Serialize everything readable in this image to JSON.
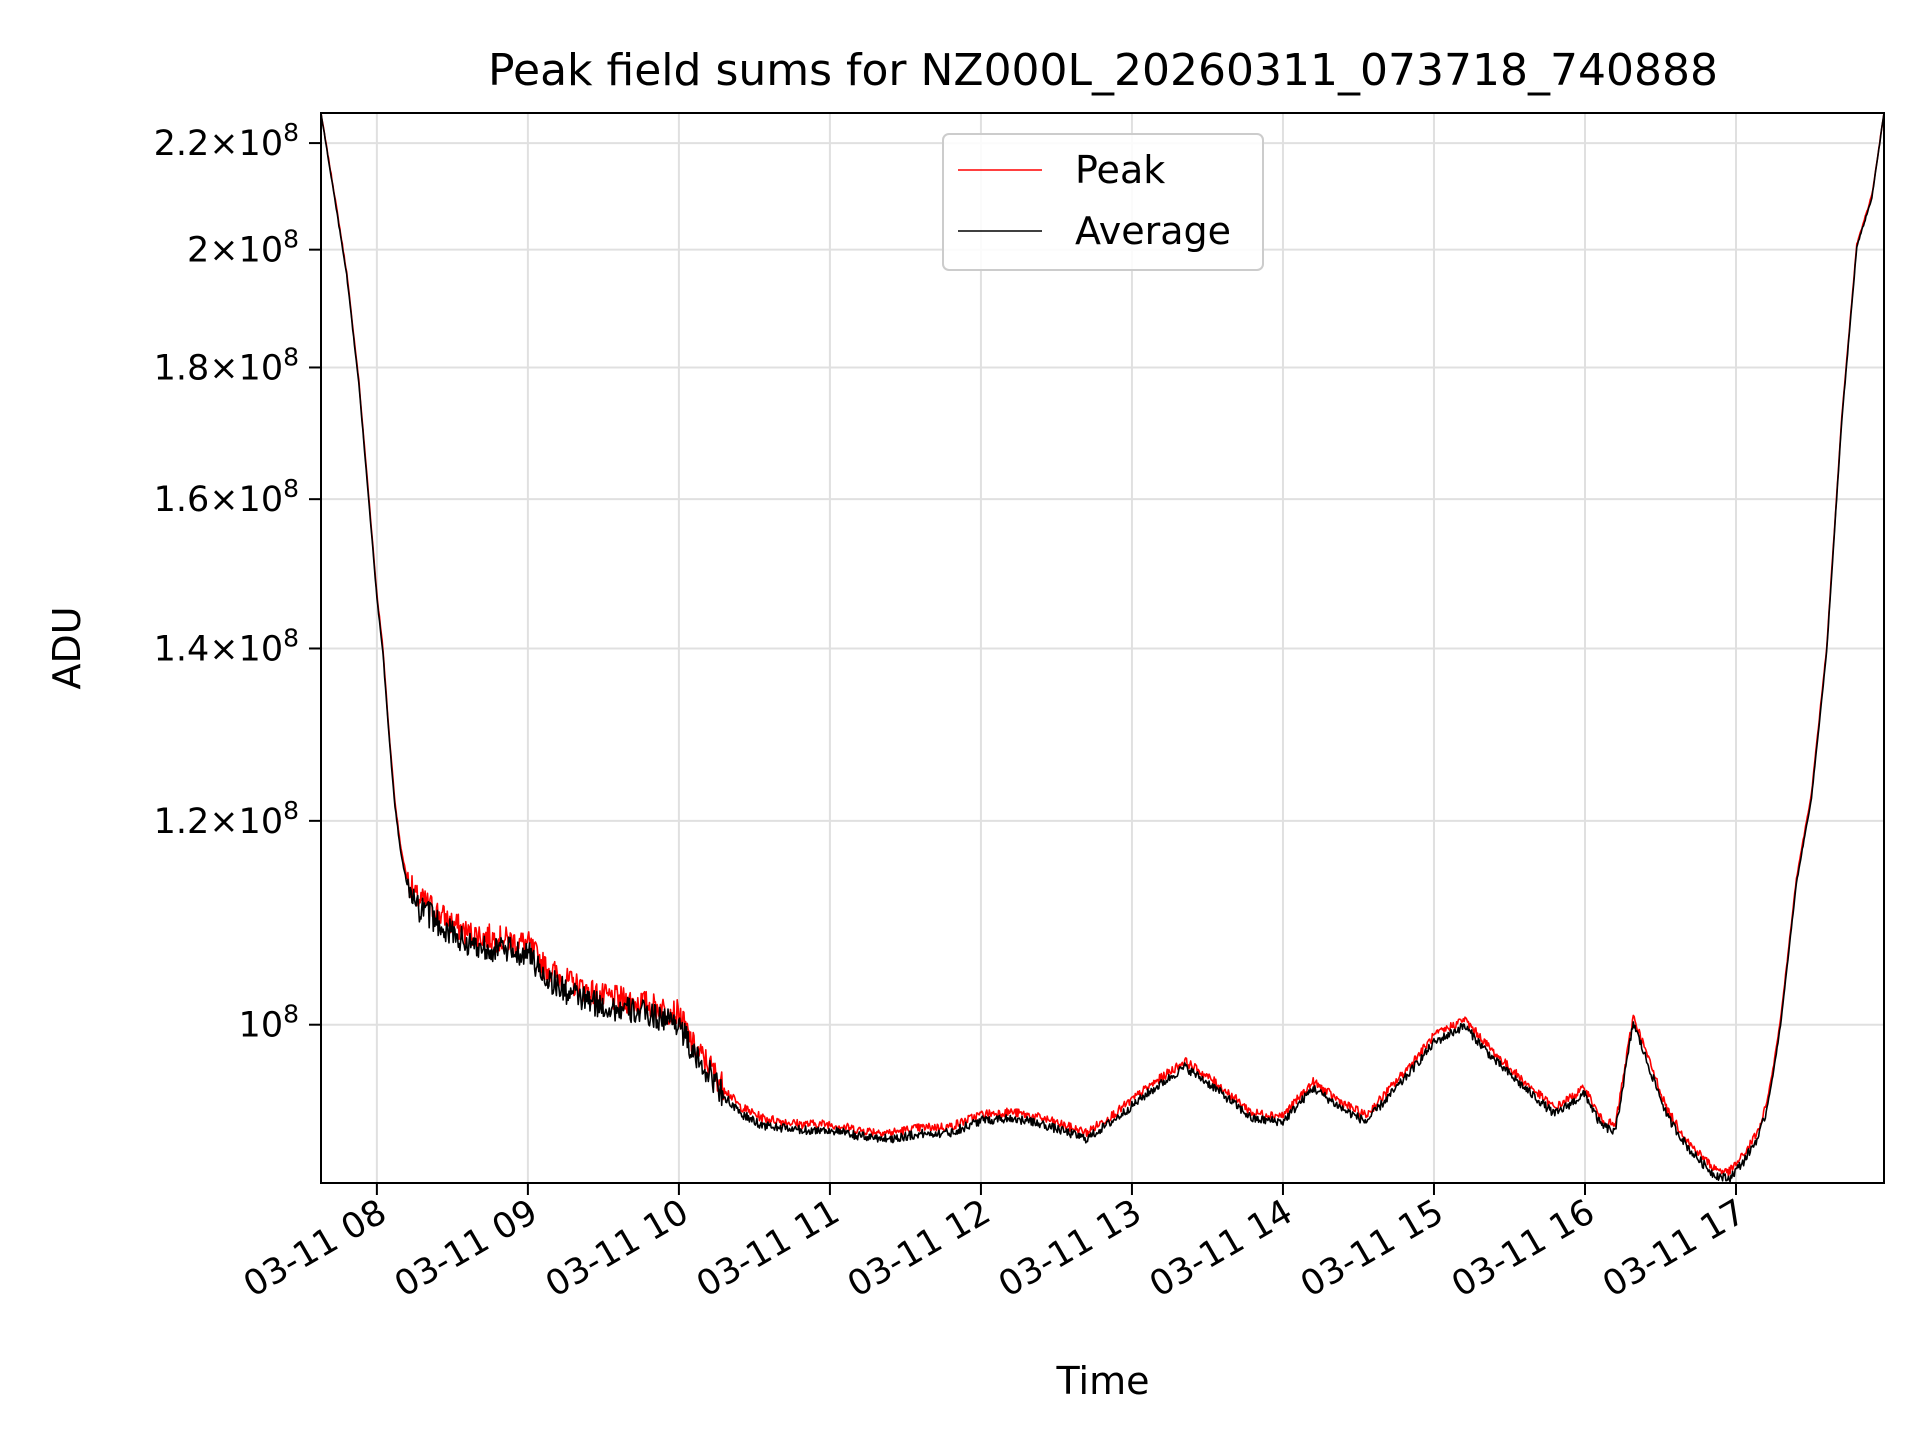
{
  "chart_data": {
    "type": "line",
    "title": "Peak field sums for NZ000L_20260311_073718_740888",
    "xlabel": "Time",
    "ylabel": "ADU",
    "y_scale": "log",
    "grid": true,
    "legend_position": "top-center",
    "xlim_hours": [
      7.63,
      17.98
    ],
    "ylim": [
      86800000,
      226000000
    ],
    "x_ticks": [
      {
        "hour": 8,
        "label": "03-11 08"
      },
      {
        "hour": 9,
        "label": "03-11 09"
      },
      {
        "hour": 10,
        "label": "03-11 10"
      },
      {
        "hour": 11,
        "label": "03-11 11"
      },
      {
        "hour": 12,
        "label": "03-11 12"
      },
      {
        "hour": 13,
        "label": "03-11 13"
      },
      {
        "hour": 14,
        "label": "03-11 14"
      },
      {
        "hour": 15,
        "label": "03-11 15"
      },
      {
        "hour": 16,
        "label": "03-11 16"
      },
      {
        "hour": 17,
        "label": "03-11 17"
      }
    ],
    "y_ticks": [
      {
        "value": 100000000,
        "mantissa": "",
        "exponent": "8"
      },
      {
        "value": 120000000,
        "mantissa": "1.2",
        "exponent": "8"
      },
      {
        "value": 140000000,
        "mantissa": "1.4",
        "exponent": "8"
      },
      {
        "value": 160000000,
        "mantissa": "1.6",
        "exponent": "8"
      },
      {
        "value": 180000000,
        "mantissa": "1.8",
        "exponent": "8"
      },
      {
        "value": 200000000,
        "mantissa": "2",
        "exponent": "8"
      },
      {
        "value": 220000000,
        "mantissa": "2.2",
        "exponent": "8"
      }
    ],
    "series": [
      {
        "name": "Peak",
        "color": "#ff0000",
        "x_hours": [
          7.63,
          7.72,
          7.8,
          7.88,
          7.94,
          8.0,
          8.04,
          8.08,
          8.12,
          8.16,
          8.2,
          8.26,
          8.33,
          8.45,
          8.6,
          8.8,
          9.0,
          9.1,
          9.25,
          9.5,
          9.75,
          10.0,
          10.1,
          10.2,
          10.3,
          10.4,
          10.55,
          10.8,
          11.0,
          11.2,
          11.4,
          11.6,
          11.8,
          12.0,
          12.2,
          12.4,
          12.5,
          12.6,
          12.7,
          12.9,
          13.1,
          13.35,
          13.55,
          13.8,
          14.0,
          14.2,
          14.4,
          14.55,
          14.8,
          15.0,
          15.2,
          15.4,
          15.6,
          15.8,
          16.0,
          16.1,
          16.2,
          16.32,
          16.42,
          16.55,
          16.7,
          16.85,
          16.95,
          17.05,
          17.15,
          17.2,
          17.25,
          17.3,
          17.4,
          17.5,
          17.6,
          17.7,
          17.8,
          17.9,
          17.98
        ],
        "values": [
          226000000,
          210000000,
          196000000,
          178000000,
          162000000,
          147000000,
          140000000,
          130000000,
          122000000,
          117000000,
          114000000,
          112000000,
          111500000,
          110000000,
          108500000,
          108000000,
          107500000,
          105500000,
          104000000,
          102500000,
          102000000,
          101000000,
          98000000,
          96500000,
          94500000,
          93000000,
          92000000,
          91500000,
          91500000,
          91000000,
          90800000,
          91200000,
          91300000,
          92300000,
          92500000,
          92000000,
          91600000,
          91200000,
          90800000,
          92500000,
          94500000,
          96800000,
          95000000,
          92400000,
          92200000,
          95000000,
          93200000,
          92200000,
          95800000,
          99000000,
          100500000,
          97500000,
          95000000,
          92800000,
          94500000,
          92000000,
          91300000,
          100800000,
          97000000,
          92500000,
          89800000,
          88000000,
          87600000,
          89000000,
          91000000,
          93000000,
          96500000,
          101000000,
          114000000,
          123000000,
          140000000,
          172000000,
          201000000,
          210000000,
          226000000
        ]
      },
      {
        "name": "Average",
        "color": "#000000",
        "x_hours": [
          7.63,
          7.72,
          7.8,
          7.88,
          7.94,
          8.0,
          8.04,
          8.08,
          8.12,
          8.16,
          8.2,
          8.26,
          8.33,
          8.45,
          8.6,
          8.8,
          9.0,
          9.1,
          9.25,
          9.5,
          9.75,
          10.0,
          10.1,
          10.2,
          10.3,
          10.4,
          10.55,
          10.8,
          11.0,
          11.2,
          11.4,
          11.6,
          11.8,
          12.0,
          12.2,
          12.4,
          12.5,
          12.6,
          12.7,
          12.9,
          13.1,
          13.35,
          13.55,
          13.8,
          14.0,
          14.2,
          14.4,
          14.55,
          14.8,
          15.0,
          15.2,
          15.4,
          15.6,
          15.8,
          16.0,
          16.1,
          16.2,
          16.32,
          16.42,
          16.55,
          16.7,
          16.85,
          16.95,
          17.05,
          17.15,
          17.2,
          17.25,
          17.3,
          17.4,
          17.5,
          17.6,
          17.7,
          17.8,
          17.9,
          17.98
        ],
        "values": [
          226000000,
          209500000,
          195500000,
          177500000,
          161500000,
          146500000,
          139500000,
          129500000,
          121500000,
          116500000,
          113300000,
          111000000,
          110500000,
          109000000,
          107500000,
          107000000,
          106600000,
          104600000,
          103000000,
          101600000,
          101100000,
          100200000,
          97200000,
          95800000,
          93800000,
          92400000,
          91400000,
          91000000,
          91000000,
          90500000,
          90300000,
          90700000,
          90800000,
          91800000,
          92000000,
          91500000,
          91100000,
          90700000,
          90300000,
          92000000,
          94000000,
          96300000,
          94500000,
          91900000,
          91700000,
          94500000,
          92700000,
          91700000,
          95200000,
          98400000,
          99900000,
          96900000,
          94500000,
          92300000,
          94000000,
          91500000,
          90800000,
          100200000,
          96400000,
          92000000,
          89300000,
          87500000,
          87100000,
          88500000,
          90500000,
          92500000,
          96000000,
          100500000,
          113500000,
          122500000,
          139500000,
          171500000,
          200500000,
          209500000,
          226000000
        ]
      }
    ]
  }
}
